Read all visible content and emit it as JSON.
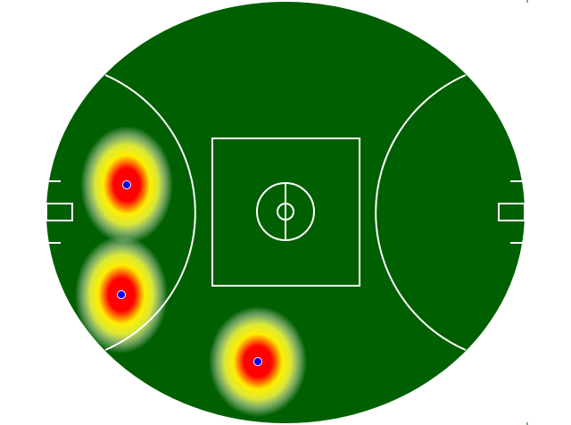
{
  "field": {
    "type": "afl-oval-heatmap",
    "grass_color": "#005f00",
    "line_color": "#ffffff",
    "background": "#ffffff"
  },
  "heatmap": {
    "colors": {
      "hot": "#ff0000",
      "warm": "#ffff00",
      "point": "#0000ff"
    },
    "hotspot_count": 3
  }
}
